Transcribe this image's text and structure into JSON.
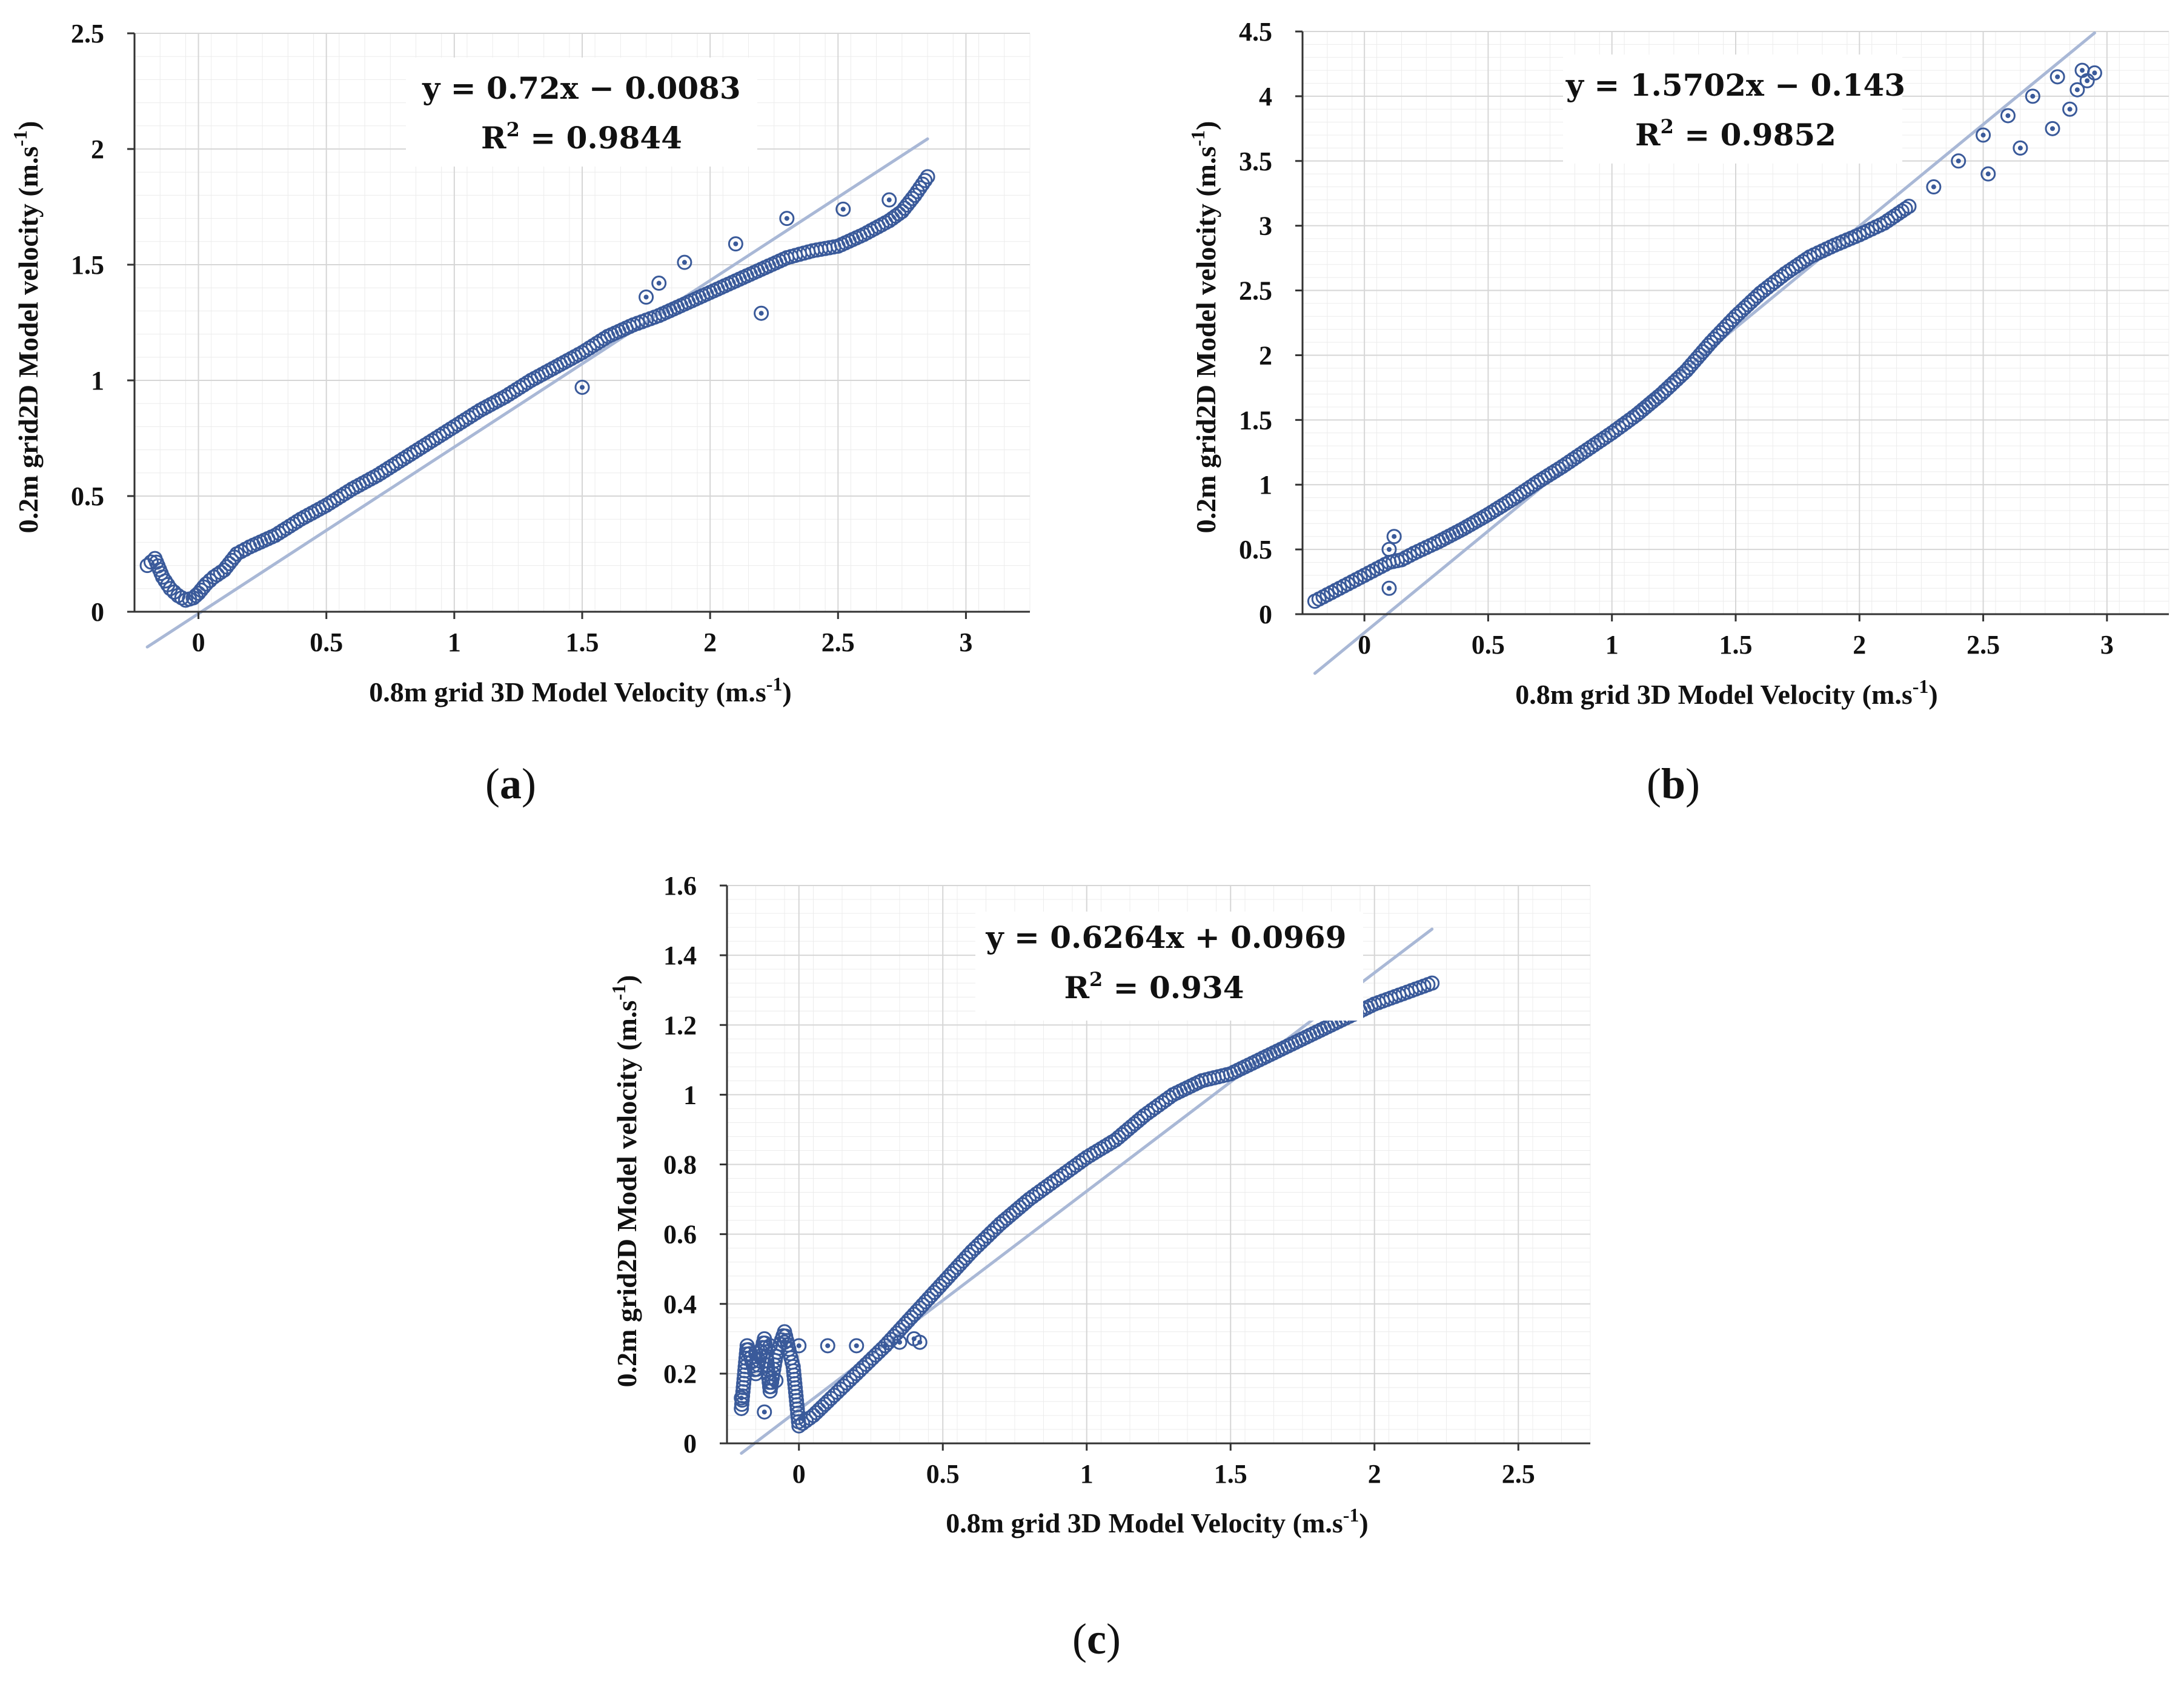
{
  "colors": {
    "marker": "#3a5a9a",
    "trendline": "#a9b8d6",
    "axis": "#333333",
    "grid": "#d6d6d6"
  },
  "chart_data": [
    {
      "type": "scatter",
      "panel_label": "a",
      "title": "",
      "xlabel": "0.8m grid 3D Model  Velocity (m.s",
      "xlabel_sup": "-1",
      "xlabel_end": ")",
      "ylabel": "0.2m grid2D Model  velocity (m.s",
      "ylabel_sup": "-1",
      "ylabel_end": ")",
      "xlim": [
        -0.25,
        3.25
      ],
      "ylim": [
        0,
        2.5
      ],
      "xticks": [
        0,
        0.5,
        1,
        1.5,
        2,
        2.5,
        3
      ],
      "xtick_labels": [
        "0",
        "0.5",
        "1",
        "1.5",
        "2",
        "2.5",
        "3"
      ],
      "yticks": [
        0,
        0.5,
        1,
        1.5,
        2,
        2.5
      ],
      "ytick_labels": [
        "0",
        "0.5",
        "1",
        "1.5",
        "2",
        "2.5"
      ],
      "equation": "y = 0.72x − 0.0083",
      "r2_label": "R",
      "r2_value": " = 0.9844",
      "trendline": {
        "slope": 0.72,
        "intercept": -0.0083,
        "x_range": [
          -0.2,
          2.85
        ]
      },
      "series": [
        {
          "name": "main",
          "x": [
            -0.2,
            -0.17,
            -0.14,
            -0.11,
            -0.08,
            -0.05,
            -0.02,
            0.0,
            0.03,
            0.06,
            0.1,
            0.15,
            0.2,
            0.3,
            0.4,
            0.5,
            0.6,
            0.7,
            0.8,
            0.9,
            1.0,
            1.1,
            1.2,
            1.3,
            1.4,
            1.5,
            1.6,
            1.7,
            1.8,
            1.9,
            2.0,
            2.1,
            2.2,
            2.3,
            2.4,
            2.5,
            2.6,
            2.7,
            2.75,
            2.8,
            2.85
          ],
          "y": [
            0.2,
            0.23,
            0.15,
            0.1,
            0.07,
            0.05,
            0.06,
            0.08,
            0.12,
            0.15,
            0.18,
            0.25,
            0.28,
            0.33,
            0.4,
            0.46,
            0.53,
            0.59,
            0.66,
            0.73,
            0.8,
            0.87,
            0.93,
            1.0,
            1.06,
            1.12,
            1.19,
            1.24,
            1.28,
            1.33,
            1.38,
            1.43,
            1.48,
            1.53,
            1.56,
            1.58,
            1.63,
            1.69,
            1.73,
            1.8,
            1.88
          ]
        },
        {
          "name": "outliers",
          "x": [
            1.5,
            1.75,
            1.8,
            1.9,
            2.1,
            2.2,
            2.3,
            2.52,
            2.7
          ],
          "y": [
            0.97,
            1.36,
            1.42,
            1.51,
            1.59,
            1.29,
            1.7,
            1.74,
            1.78
          ]
        }
      ]
    },
    {
      "type": "scatter",
      "panel_label": "b",
      "title": "",
      "xlabel": "0.8m grid 3D Model  Velocity (m.s",
      "xlabel_sup": "-1",
      "xlabel_end": ")",
      "ylabel": "0.2m grid2D Model  velocity (m.s",
      "ylabel_sup": "-1",
      "ylabel_end": ")",
      "xlim": [
        -0.25,
        3.25
      ],
      "ylim": [
        0,
        4.5
      ],
      "xticks": [
        0,
        0.5,
        1,
        1.5,
        2,
        2.5,
        3
      ],
      "xtick_labels": [
        "0",
        "0.5",
        "1",
        "1.5",
        "2",
        "2.5",
        "3"
      ],
      "yticks": [
        0,
        0.5,
        1,
        1.5,
        2,
        2.5,
        3,
        3.5,
        4,
        4.5
      ],
      "ytick_labels": [
        "0",
        "0.5",
        "1",
        "1.5",
        "2",
        "2.5",
        "3",
        "3.5",
        "4",
        "4.5"
      ],
      "equation": "y = 1.5702x − 0.143",
      "r2_label": "R",
      "r2_value": " = 0.9852",
      "trendline": {
        "slope": 1.5702,
        "intercept": -0.143,
        "x_range": [
          -0.2,
          2.95
        ]
      },
      "series": [
        {
          "name": "main",
          "x": [
            -0.2,
            -0.15,
            -0.1,
            -0.05,
            0.0,
            0.05,
            0.1,
            0.15,
            0.2,
            0.3,
            0.4,
            0.5,
            0.6,
            0.7,
            0.8,
            0.9,
            1.0,
            1.1,
            1.2,
            1.3,
            1.4,
            1.5,
            1.6,
            1.7,
            1.8,
            1.9,
            2.0,
            2.1,
            2.2
          ],
          "y": [
            0.1,
            0.15,
            0.2,
            0.25,
            0.3,
            0.35,
            0.4,
            0.42,
            0.47,
            0.56,
            0.66,
            0.77,
            0.89,
            1.02,
            1.14,
            1.27,
            1.4,
            1.54,
            1.7,
            1.88,
            2.1,
            2.3,
            2.48,
            2.63,
            2.76,
            2.85,
            2.93,
            3.02,
            3.15
          ]
        },
        {
          "name": "outliers",
          "x": [
            0.1,
            0.12,
            0.1,
            2.3,
            2.4,
            2.5,
            2.52,
            2.6,
            2.65,
            2.7,
            2.78,
            2.8,
            2.85,
            2.9,
            2.95,
            2.88,
            2.92
          ],
          "y": [
            0.5,
            0.6,
            0.2,
            3.3,
            3.5,
            3.7,
            3.4,
            3.85,
            3.6,
            4.0,
            3.75,
            4.15,
            3.9,
            4.2,
            4.18,
            4.05,
            4.12
          ]
        }
      ]
    },
    {
      "type": "scatter",
      "panel_label": "c",
      "title": "",
      "xlabel": "0.8m grid 3D Model  Velocity (m.s",
      "xlabel_sup": "-1",
      "xlabel_end": ")",
      "ylabel": "0.2m grid2D Model  velocity (m.s",
      "ylabel_sup": "-1",
      "ylabel_end": ")",
      "xlim": [
        -0.25,
        2.75
      ],
      "ylim": [
        0,
        1.6
      ],
      "xticks": [
        0,
        0.5,
        1,
        1.5,
        2,
        2.5
      ],
      "xtick_labels": [
        "0",
        "0.5",
        "1",
        "1.5",
        "2",
        "2.5"
      ],
      "yticks": [
        0,
        0.2,
        0.4,
        0.6,
        0.8,
        1,
        1.2,
        1.4,
        1.6
      ],
      "ytick_labels": [
        "0",
        "0.2",
        "0.4",
        "0.6",
        "0.8",
        "1",
        "1.2",
        "1.4",
        "1.6"
      ],
      "equation": "y = 0.6264x + 0.0969",
      "r2_label": "R",
      "r2_value": " = 0.934",
      "trendline": {
        "slope": 0.6264,
        "intercept": 0.0969,
        "x_range": [
          -0.2,
          2.2
        ]
      },
      "series": [
        {
          "name": "main",
          "x": [
            -0.2,
            -0.18,
            -0.15,
            -0.12,
            -0.1,
            -0.08,
            -0.05,
            -0.02,
            0.0,
            0.05,
            0.1,
            0.2,
            0.3,
            0.4,
            0.5,
            0.6,
            0.7,
            0.8,
            0.9,
            1.0,
            1.1,
            1.2,
            1.3,
            1.4,
            1.5,
            1.6,
            1.7,
            1.8,
            1.9,
            2.0,
            2.1,
            2.2
          ],
          "y": [
            0.1,
            0.28,
            0.2,
            0.3,
            0.15,
            0.25,
            0.32,
            0.22,
            0.05,
            0.08,
            0.12,
            0.2,
            0.28,
            0.37,
            0.46,
            0.55,
            0.63,
            0.7,
            0.76,
            0.82,
            0.87,
            0.94,
            1.0,
            1.04,
            1.06,
            1.1,
            1.14,
            1.18,
            1.22,
            1.26,
            1.29,
            1.32
          ]
        },
        {
          "name": "outliers",
          "x": [
            -0.15,
            -0.1,
            -0.05,
            0.0,
            0.1,
            0.2,
            0.3,
            0.35,
            0.4,
            0.42,
            -0.2,
            -0.12,
            -0.08
          ],
          "y": [
            0.26,
            0.28,
            0.29,
            0.28,
            0.28,
            0.28,
            0.28,
            0.29,
            0.3,
            0.29,
            0.13,
            0.09,
            0.18
          ]
        }
      ]
    }
  ]
}
